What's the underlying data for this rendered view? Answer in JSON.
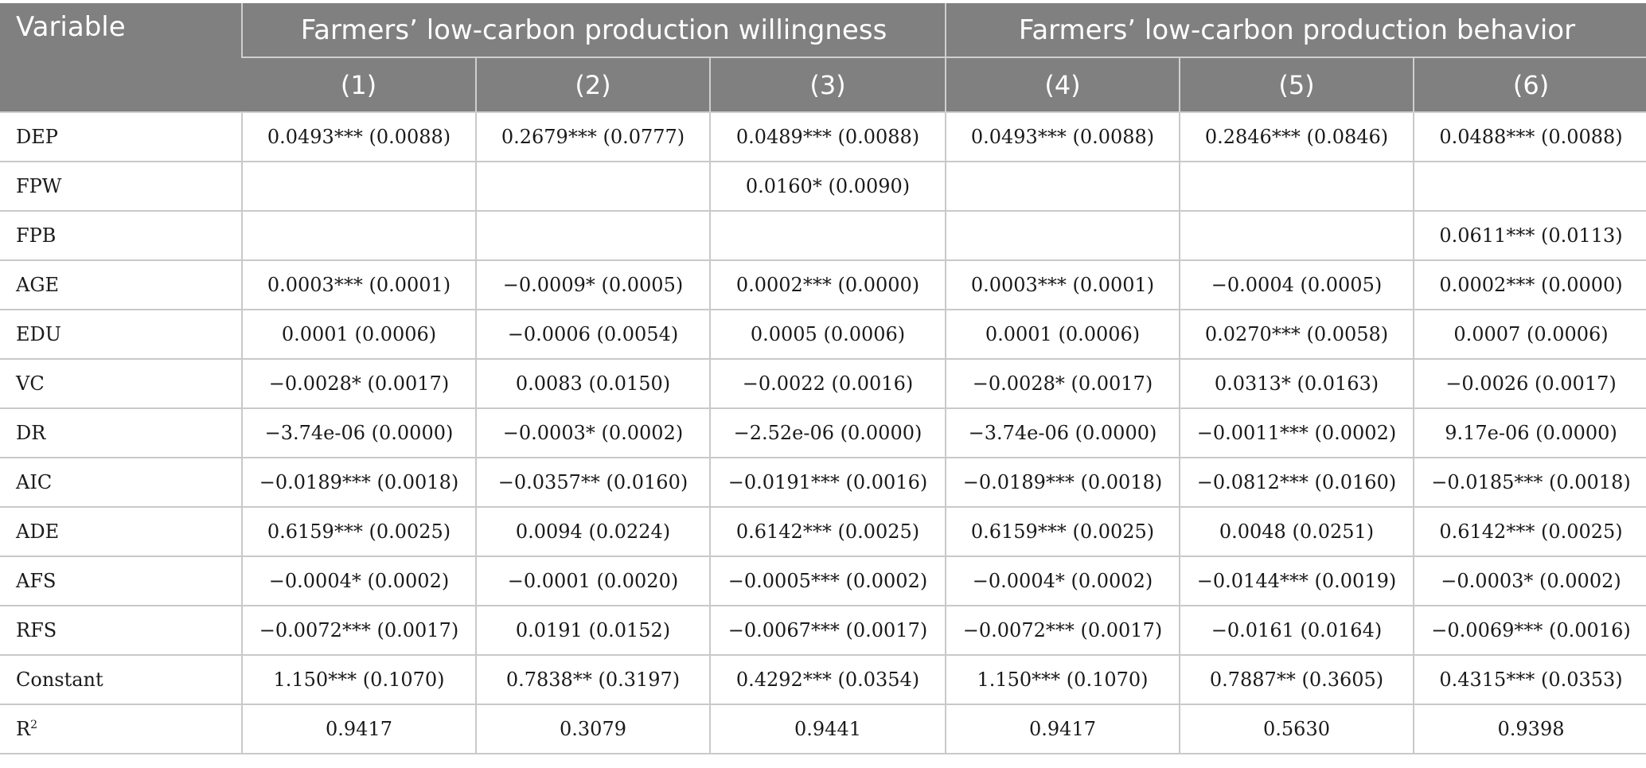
{
  "header": {
    "variable": "Variable",
    "groups": [
      "Farmers’ low-carbon production willingness",
      "Farmers’ low-carbon production behavior"
    ],
    "columns": [
      "(1)",
      "(2)",
      "(3)",
      "(4)",
      "(5)",
      "(6)"
    ]
  },
  "rows": [
    {
      "name": "DEP",
      "cells": [
        "0.0493*** (0.0088)",
        "0.2679*** (0.0777)",
        "0.0489*** (0.0088)",
        "0.0493*** (0.0088)",
        "0.2846*** (0.0846)",
        "0.0488*** (0.0088)"
      ]
    },
    {
      "name": "FPW",
      "cells": [
        "",
        "",
        "0.0160* (0.0090)",
        "",
        "",
        ""
      ]
    },
    {
      "name": "FPB",
      "cells": [
        "",
        "",
        "",
        "",
        "",
        "0.0611*** (0.0113)"
      ]
    },
    {
      "name": "AGE",
      "cells": [
        "0.0003*** (0.0001)",
        "−0.0009* (0.0005)",
        "0.0002*** (0.0000)",
        "0.0003*** (0.0001)",
        "−0.0004 (0.0005)",
        "0.0002*** (0.0000)"
      ]
    },
    {
      "name": "EDU",
      "cells": [
        "0.0001 (0.0006)",
        "−0.0006 (0.0054)",
        "0.0005 (0.0006)",
        "0.0001 (0.0006)",
        "0.0270*** (0.0058)",
        "0.0007 (0.0006)"
      ]
    },
    {
      "name": "VC",
      "cells": [
        "−0.0028* (0.0017)",
        "0.0083 (0.0150)",
        "−0.0022 (0.0016)",
        "−0.0028* (0.0017)",
        "0.0313* (0.0163)",
        "−0.0026 (0.0017)"
      ]
    },
    {
      "name": "DR",
      "cells": [
        "−3.74e-06 (0.0000)",
        "−0.0003* (0.0002)",
        "−2.52e-06 (0.0000)",
        "−3.74e-06 (0.0000)",
        "−0.0011*** (0.0002)",
        "9.17e-06 (0.0000)"
      ]
    },
    {
      "name": "AIC",
      "cells": [
        "−0.0189*** (0.0018)",
        "−0.0357** (0.0160)",
        "−0.0191*** (0.0016)",
        "−0.0189*** (0.0018)",
        "−0.0812*** (0.0160)",
        "−0.0185*** (0.0018)"
      ]
    },
    {
      "name": "ADE",
      "cells": [
        "0.6159*** (0.0025)",
        "0.0094 (0.0224)",
        "0.6142*** (0.0025)",
        "0.6159*** (0.0025)",
        "0.0048 (0.0251)",
        "0.6142*** (0.0025)"
      ]
    },
    {
      "name": "AFS",
      "cells": [
        "−0.0004* (0.0002)",
        "−0.0001 (0.0020)",
        "−0.0005*** (0.0002)",
        "−0.0004* (0.0002)",
        "−0.0144*** (0.0019)",
        "−0.0003* (0.0002)"
      ]
    },
    {
      "name": "RFS",
      "cells": [
        "−0.0072*** (0.0017)",
        "0.0191 (0.0152)",
        "−0.0067*** (0.0017)",
        "−0.0072*** (0.0017)",
        "−0.0161 (0.0164)",
        "−0.0069*** (0.0016)"
      ]
    },
    {
      "name": "Constant",
      "cells": [
        "1.150*** (0.1070)",
        "0.7838** (0.3197)",
        "0.4292*** (0.0354)",
        "1.150*** (0.1070)",
        "0.7887** (0.3605)",
        "0.4315*** (0.0353)"
      ]
    }
  ],
  "r2_row": {
    "name_base": "R",
    "name_sup": "2",
    "cells": [
      "0.9417",
      "0.3079",
      "0.9441",
      "0.9417",
      "0.5630",
      "0.9398"
    ]
  }
}
